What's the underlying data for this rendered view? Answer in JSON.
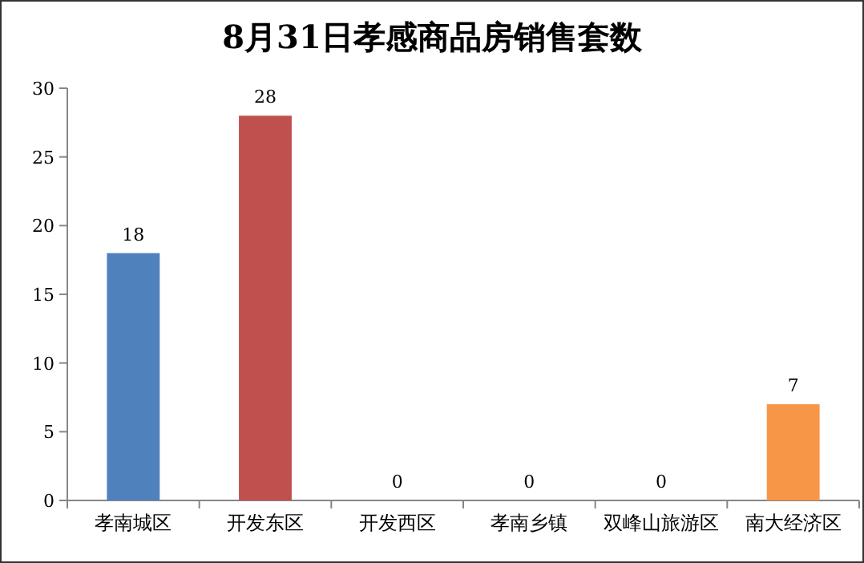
{
  "chart_data": {
    "type": "bar",
    "title": "8月31日孝感商品房销售套数",
    "categories": [
      "孝南城区",
      "开发东区",
      "开发西区",
      "孝南乡镇",
      "双峰山旅游区",
      "南大经济区"
    ],
    "values": [
      18,
      28,
      0,
      0,
      0,
      7
    ],
    "colors": [
      "#4f81bd",
      "#c0504d",
      "#9bbb59",
      "#8064a2",
      "#4bacc6",
      "#f79646"
    ],
    "ylim": [
      0,
      30
    ],
    "yticks": [
      0,
      5,
      10,
      15,
      20,
      25,
      30
    ],
    "data_labels": true
  }
}
